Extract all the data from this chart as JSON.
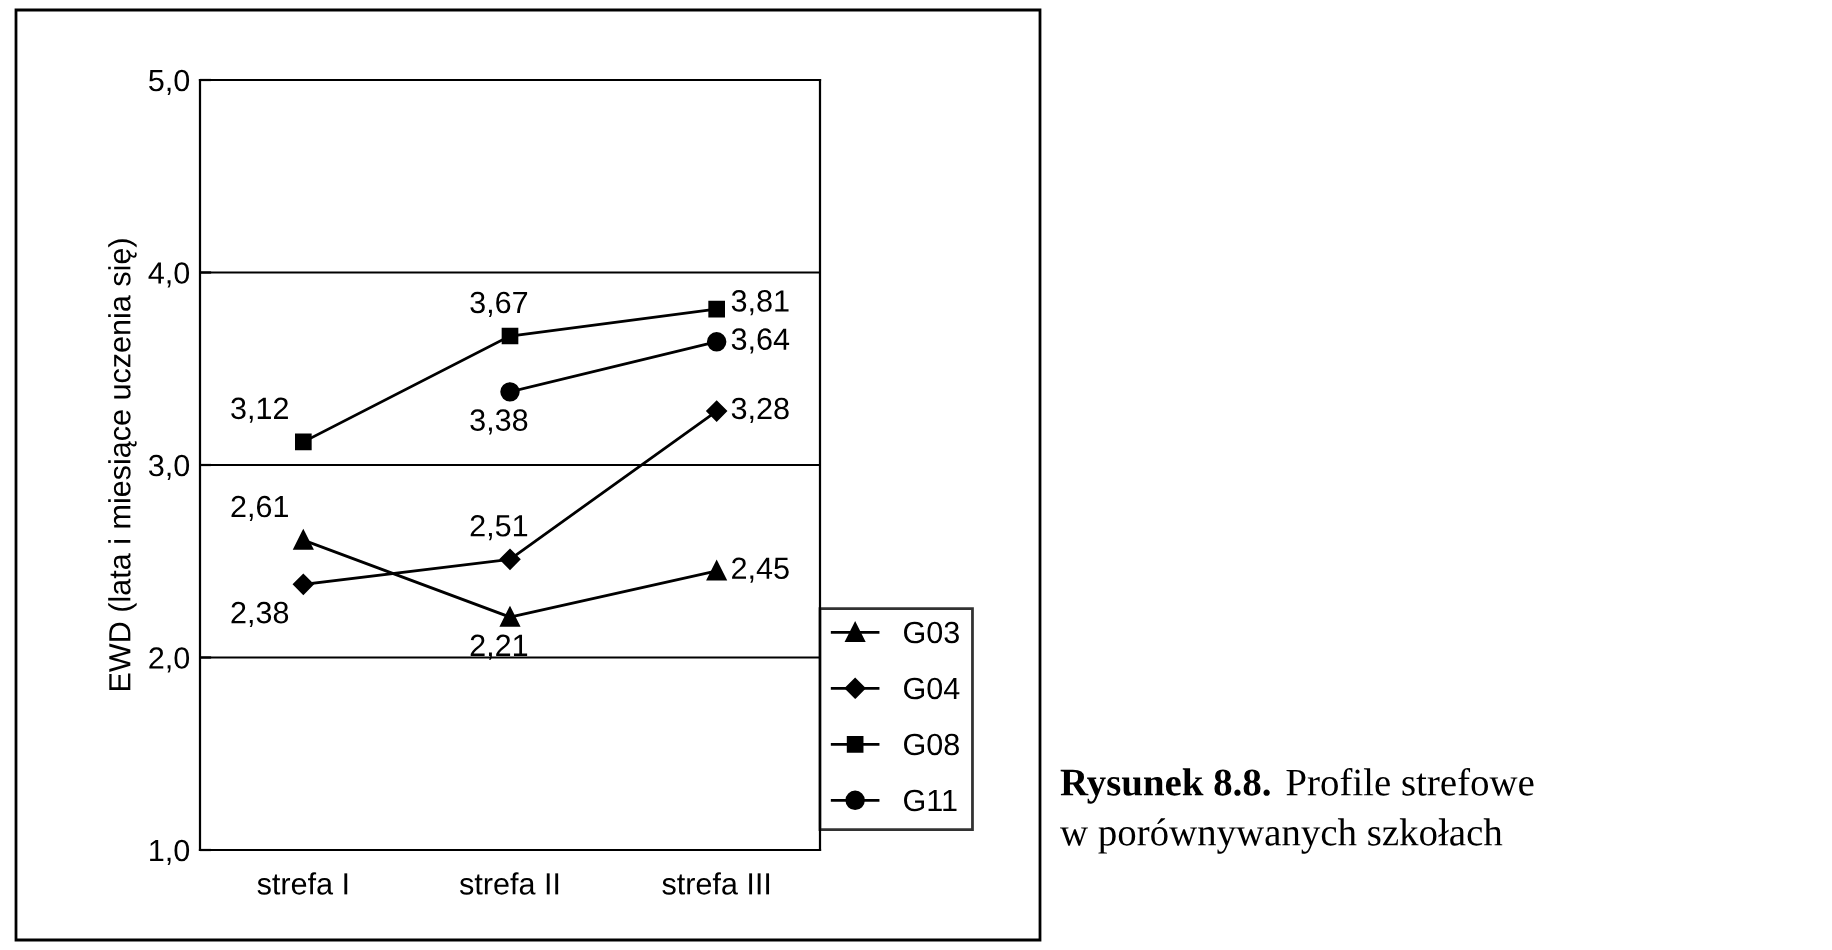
{
  "chart_data": {
    "type": "line",
    "ylabel": "EWD (lata i miesiące uczenia się)",
    "categories": [
      "strefa I",
      "strefa II",
      "strefa III"
    ],
    "series": [
      {
        "name": "G03",
        "color": "#000000",
        "marker": "triangle",
        "values": [
          2.61,
          2.21,
          2.45
        ],
        "value_labels": [
          "2,61",
          "2,21",
          "2,45"
        ]
      },
      {
        "name": "G04",
        "color": "#000000",
        "marker": "diamond",
        "values": [
          2.38,
          2.51,
          3.28
        ],
        "value_labels": [
          "2,38",
          "2,51",
          "3,28"
        ]
      },
      {
        "name": "G08",
        "color": "#000000",
        "marker": "square",
        "values": [
          3.12,
          3.67,
          3.81
        ],
        "value_labels": [
          "3,12",
          "3,67",
          "3,81"
        ]
      },
      {
        "name": "G11",
        "color": "#000000",
        "marker": "circle",
        "values": [
          null,
          3.38,
          3.64
        ],
        "value_labels": [
          null,
          "3,38",
          "3,64"
        ]
      }
    ],
    "ylim": [
      1.0,
      5.0
    ],
    "yticks": [
      {
        "value": 1.0,
        "label": "1,0"
      },
      {
        "value": 2.0,
        "label": "2,0"
      },
      {
        "value": 3.0,
        "label": "3,0"
      },
      {
        "value": 4.0,
        "label": "4,0"
      },
      {
        "value": 5.0,
        "label": "5,0"
      }
    ],
    "grid": "y",
    "legend": "right",
    "annotations": [
      "Rysunek 8.8.",
      "Profile strefowe w porównywanych szkołach"
    ]
  }
}
